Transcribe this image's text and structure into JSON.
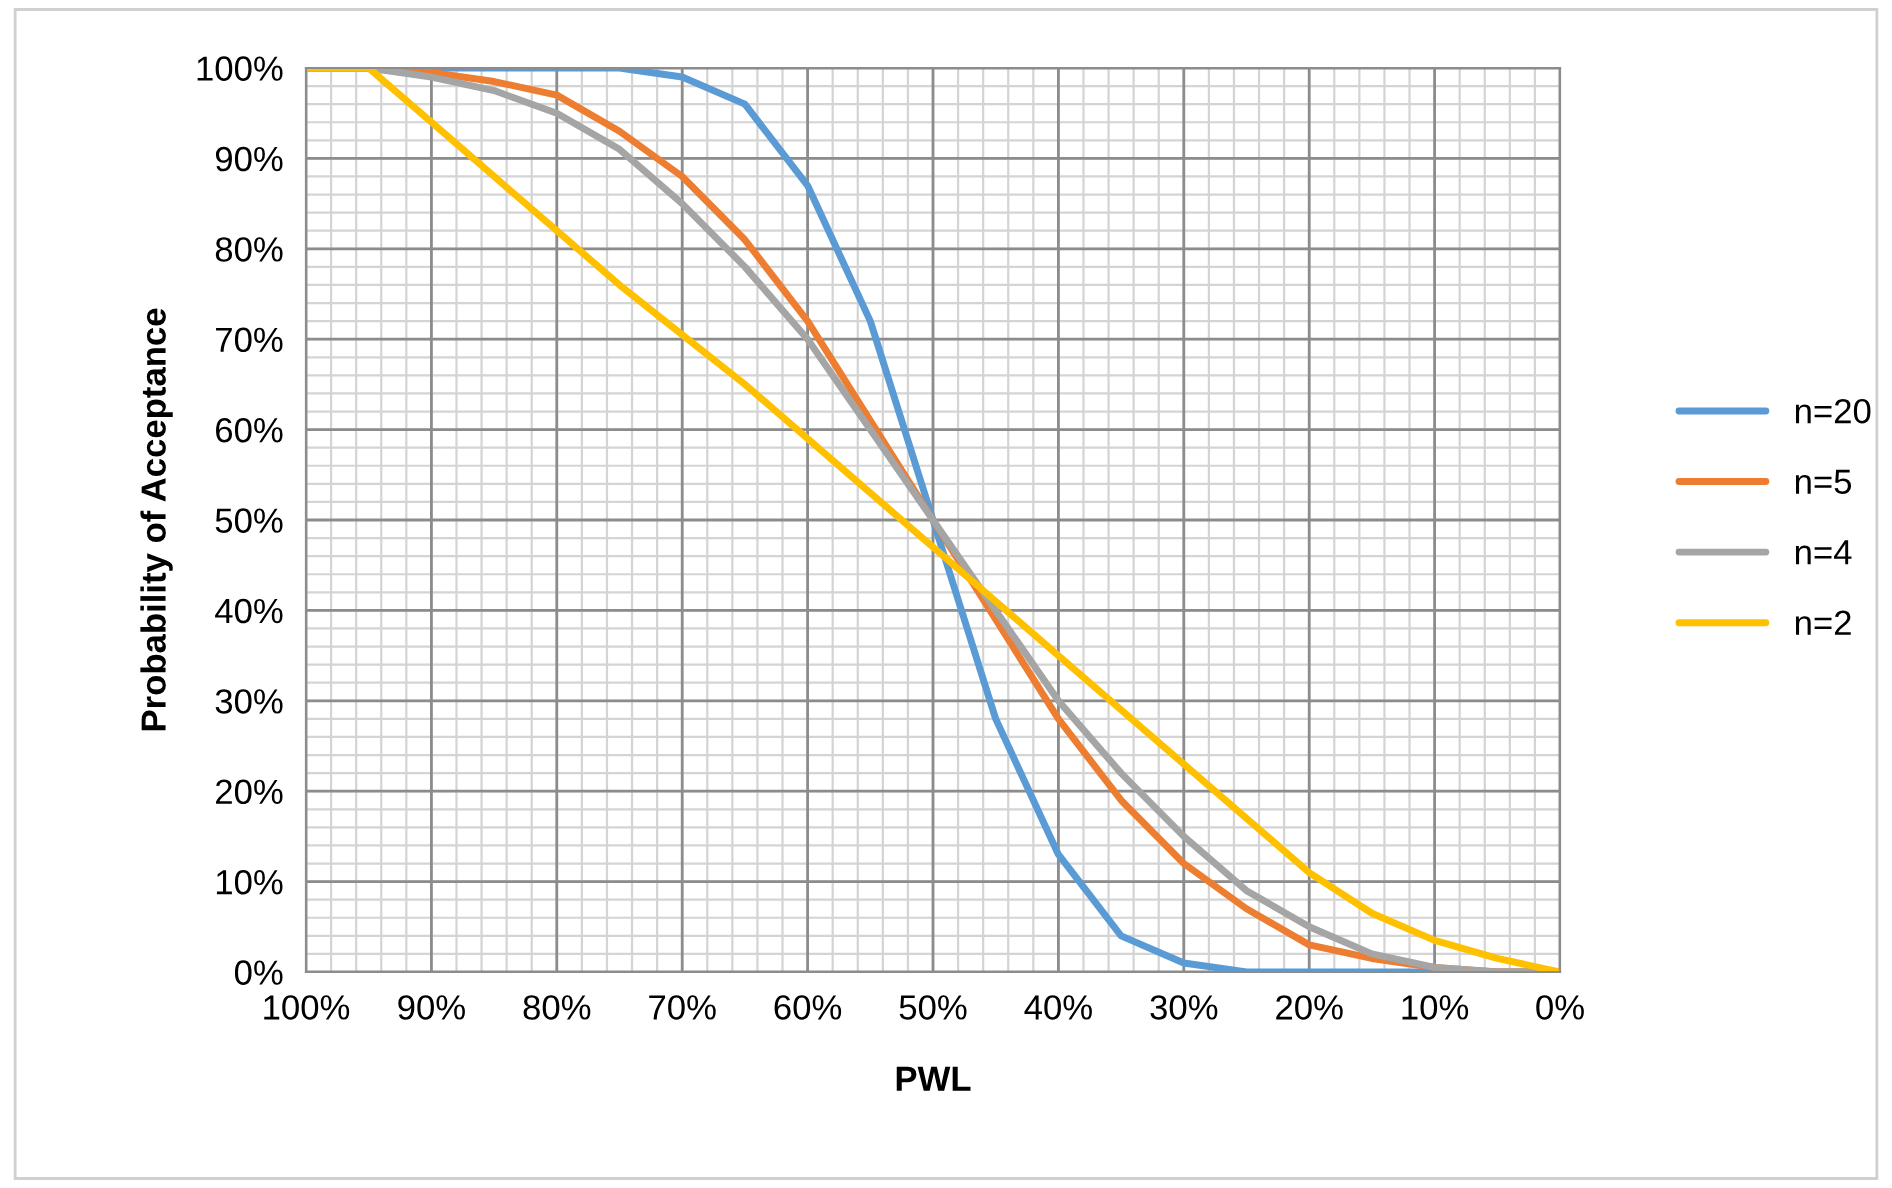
{
  "chart_data": {
    "type": "line",
    "xlabel": "PWL",
    "ylabel": "Probability of Acceptance",
    "x": [
      100,
      95,
      90,
      85,
      80,
      75,
      70,
      65,
      60,
      55,
      50,
      45,
      40,
      35,
      30,
      25,
      20,
      15,
      10,
      5,
      0
    ],
    "series": [
      {
        "name": "n=20",
        "color": "#5b9bd5",
        "values": [
          100,
          100,
          100,
          100,
          100,
          100,
          99,
          96,
          87,
          72,
          50,
          28,
          13,
          4,
          1,
          0,
          0,
          0,
          0,
          0,
          0
        ]
      },
      {
        "name": "n=5",
        "color": "#ed7d31",
        "values": [
          100,
          100,
          99.5,
          98.5,
          97,
          93,
          88,
          81,
          72,
          61,
          50,
          39,
          28,
          19,
          12,
          7,
          3,
          1.5,
          0.5,
          0,
          0
        ]
      },
      {
        "name": "n=4",
        "color": "#a5a5a5",
        "values": [
          100,
          100,
          99,
          97.5,
          95,
          91,
          85,
          78,
          70,
          60,
          50,
          40,
          30,
          22,
          15,
          9,
          5,
          2,
          0.5,
          0,
          0
        ]
      },
      {
        "name": "n=2",
        "color": "#ffc000",
        "values": [
          100,
          100,
          94,
          88,
          82,
          76,
          70.5,
          65,
          59,
          53,
          47,
          41,
          35,
          29,
          23,
          17,
          11,
          6.5,
          3.5,
          1.5,
          0
        ]
      }
    ],
    "xlim": [
      100,
      0
    ],
    "ylim": [
      0,
      100
    ],
    "xticks": [
      {
        "value": 100,
        "label": "100%"
      },
      {
        "value": 90,
        "label": "90%"
      },
      {
        "value": 80,
        "label": "80%"
      },
      {
        "value": 70,
        "label": "70%"
      },
      {
        "value": 60,
        "label": "60%"
      },
      {
        "value": 50,
        "label": "50%"
      },
      {
        "value": 40,
        "label": "40%"
      },
      {
        "value": 30,
        "label": "30%"
      },
      {
        "value": 20,
        "label": "20%"
      },
      {
        "value": 10,
        "label": "10%"
      },
      {
        "value": 0,
        "label": "0%"
      }
    ],
    "yticks": [
      {
        "value": 0,
        "label": "0%"
      },
      {
        "value": 10,
        "label": "10%"
      },
      {
        "value": 20,
        "label": "20%"
      },
      {
        "value": 30,
        "label": "30%"
      },
      {
        "value": 40,
        "label": "40%"
      },
      {
        "value": 50,
        "label": "50%"
      },
      {
        "value": 60,
        "label": "60%"
      },
      {
        "value": 70,
        "label": "70%"
      },
      {
        "value": 80,
        "label": "80%"
      },
      {
        "value": 90,
        "label": "90%"
      },
      {
        "value": 100,
        "label": "100%"
      }
    ],
    "grid": true,
    "legend": "right",
    "marker": "none",
    "line_style": "solid"
  }
}
